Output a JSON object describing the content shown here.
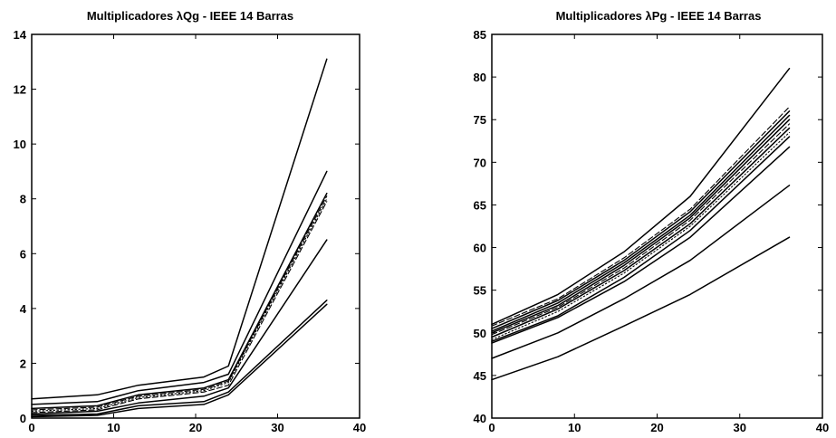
{
  "chart_data": [
    {
      "type": "line",
      "title": "Multiplicadores λQg - IEEE 14 Barras",
      "xlabel": "",
      "ylabel": "",
      "xlim": [
        0,
        40
      ],
      "ylim": [
        0,
        14
      ],
      "xticks": [
        0,
        10,
        20,
        30,
        40
      ],
      "yticks": [
        0,
        2,
        4,
        6,
        8,
        10,
        12,
        14
      ],
      "legend": "none",
      "grid": false,
      "x": [
        0,
        8,
        13,
        21,
        24,
        36
      ],
      "series": [
        {
          "values": [
            0.7,
            0.85,
            1.2,
            1.5,
            1.9,
            13.1
          ],
          "style": "solid"
        },
        {
          "values": [
            0.5,
            0.6,
            1.0,
            1.3,
            1.6,
            9.0
          ],
          "style": "solid"
        },
        {
          "values": [
            0.35,
            0.45,
            0.85,
            1.1,
            1.4,
            8.2
          ],
          "style": "solid"
        },
        {
          "values": [
            0.3,
            0.4,
            0.8,
            1.05,
            1.35,
            8.1
          ],
          "style": "dashed"
        },
        {
          "values": [
            0.25,
            0.35,
            0.75,
            1.0,
            1.3,
            8.0
          ],
          "style": "dotted"
        },
        {
          "values": [
            0.2,
            0.3,
            0.7,
            0.95,
            1.2,
            7.9
          ],
          "style": "dashed"
        },
        {
          "values": [
            0.15,
            0.25,
            0.55,
            0.8,
            1.1,
            6.5
          ],
          "style": "solid"
        },
        {
          "values": [
            0.1,
            0.15,
            0.45,
            0.6,
            0.95,
            4.3
          ],
          "style": "solid"
        },
        {
          "values": [
            0.05,
            0.1,
            0.35,
            0.5,
            0.85,
            4.15
          ],
          "style": "solid"
        }
      ]
    },
    {
      "type": "line",
      "title": "Multiplicadores λPg - IEEE 14 Barras",
      "xlabel": "",
      "ylabel": "",
      "xlim": [
        0,
        40
      ],
      "ylim": [
        40,
        85
      ],
      "xticks": [
        0,
        10,
        20,
        30,
        40
      ],
      "yticks": [
        40,
        45,
        50,
        55,
        60,
        65,
        70,
        75,
        80,
        85
      ],
      "legend": "none",
      "grid": false,
      "x": [
        0,
        8,
        16,
        24,
        36
      ],
      "series": [
        {
          "values": [
            51.0,
            54.5,
            59.5,
            66.0,
            81.0
          ],
          "style": "solid"
        },
        {
          "values": [
            50.8,
            54.0,
            58.8,
            64.5,
            76.5
          ],
          "style": "dashed"
        },
        {
          "values": [
            50.5,
            53.8,
            58.5,
            64.2,
            76.0
          ],
          "style": "solid"
        },
        {
          "values": [
            50.2,
            53.5,
            58.2,
            63.8,
            75.5
          ],
          "style": "solid"
        },
        {
          "values": [
            50.0,
            53.2,
            57.9,
            63.5,
            75.0
          ],
          "style": "solid"
        },
        {
          "values": [
            49.8,
            53.0,
            57.6,
            63.2,
            74.5
          ],
          "style": "dashed"
        },
        {
          "values": [
            49.5,
            52.8,
            57.3,
            62.8,
            74.0
          ],
          "style": "solid"
        },
        {
          "values": [
            49.2,
            52.5,
            57.0,
            62.5,
            73.5
          ],
          "style": "dotted"
        },
        {
          "values": [
            49.0,
            52.0,
            56.5,
            62.0,
            73.0
          ],
          "style": "solid"
        },
        {
          "values": [
            48.8,
            51.8,
            56.0,
            61.2,
            71.8
          ],
          "style": "solid"
        },
        {
          "values": [
            47.0,
            50.0,
            54.0,
            58.5,
            67.3
          ],
          "style": "solid"
        },
        {
          "values": [
            44.5,
            47.2,
            50.8,
            54.5,
            61.2
          ],
          "style": "solid"
        }
      ]
    }
  ]
}
